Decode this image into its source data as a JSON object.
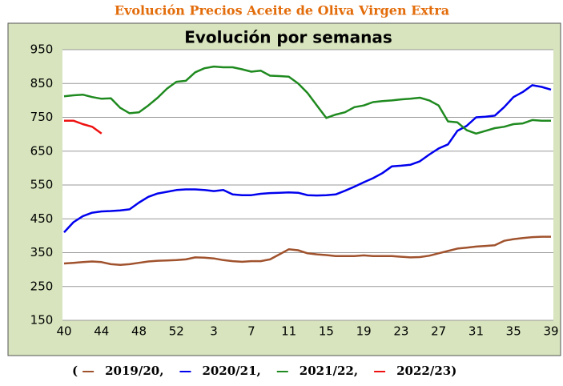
{
  "chart_data": {
    "type": "line",
    "header": "Evolución Precios Aceite de Oliva Virgen Extra",
    "title": "Evolución por semanas",
    "categories": [
      "40",
      null,
      null,
      null,
      "44",
      null,
      null,
      null,
      "48",
      null,
      null,
      null,
      "52",
      null,
      null,
      null,
      "3",
      null,
      null,
      null,
      "7",
      null,
      null,
      null,
      "11",
      null,
      null,
      null,
      "15",
      null,
      null,
      null,
      "19",
      null,
      null,
      null,
      "23",
      null,
      null,
      null,
      "27",
      null,
      null,
      null,
      "31",
      null,
      null,
      null,
      "35",
      null,
      null,
      null,
      "39"
    ],
    "ylim": [
      150,
      950
    ],
    "yticks": [
      150,
      250,
      350,
      450,
      550,
      650,
      750,
      850,
      950
    ],
    "grid": true,
    "legend_open": "(",
    "legend_close": ")",
    "series": [
      {
        "name": "2019/20,",
        "color": "#a0522d",
        "values": [
          318,
          320,
          322,
          324,
          322,
          316,
          314,
          316,
          320,
          324,
          326,
          327,
          328,
          330,
          336,
          335,
          333,
          328,
          325,
          323,
          325,
          325,
          330,
          345,
          360,
          357,
          348,
          345,
          343,
          340,
          340,
          340,
          342,
          340,
          340,
          340,
          338,
          336,
          337,
          341,
          348,
          355,
          362,
          365,
          368,
          370,
          372,
          385,
          390,
          393,
          396,
          397,
          397
        ]
      },
      {
        "name": "2020/21,",
        "color": "#0000ee",
        "values": [
          410,
          440,
          458,
          468,
          472,
          473,
          475,
          478,
          498,
          515,
          525,
          530,
          535,
          537,
          537,
          535,
          532,
          535,
          522,
          520,
          520,
          524,
          526,
          527,
          528,
          527,
          520,
          519,
          520,
          522,
          533,
          545,
          558,
          570,
          585,
          605,
          607,
          610,
          620,
          640,
          658,
          670,
          710,
          725,
          750,
          752,
          755,
          780,
          810,
          825,
          845,
          840,
          832
        ]
      },
      {
        "name": "2021/22,",
        "color": "#1f8a1f",
        "values": [
          812,
          815,
          817,
          810,
          805,
          806,
          778,
          762,
          765,
          785,
          808,
          835,
          855,
          858,
          883,
          895,
          900,
          898,
          898,
          892,
          885,
          888,
          873,
          872,
          870,
          850,
          822,
          785,
          748,
          758,
          765,
          780,
          785,
          795,
          798,
          800,
          803,
          805,
          808,
          800,
          785,
          738,
          735,
          712,
          702,
          710,
          718,
          722,
          730,
          732,
          742,
          740,
          740
        ]
      },
      {
        "name": "2022/23",
        "color": "#ee1111",
        "values": [
          740,
          740,
          730,
          722,
          702,
          null,
          null,
          null,
          null,
          null,
          null,
          null,
          null,
          null,
          null,
          null,
          null,
          null,
          null,
          null,
          null,
          null,
          null,
          null,
          null,
          null,
          null,
          null,
          null,
          null,
          null,
          null,
          null,
          null,
          null,
          null,
          null,
          null,
          null,
          null,
          null,
          null,
          null,
          null,
          null,
          null,
          null,
          null,
          null,
          null,
          null,
          null,
          null
        ]
      }
    ]
  }
}
